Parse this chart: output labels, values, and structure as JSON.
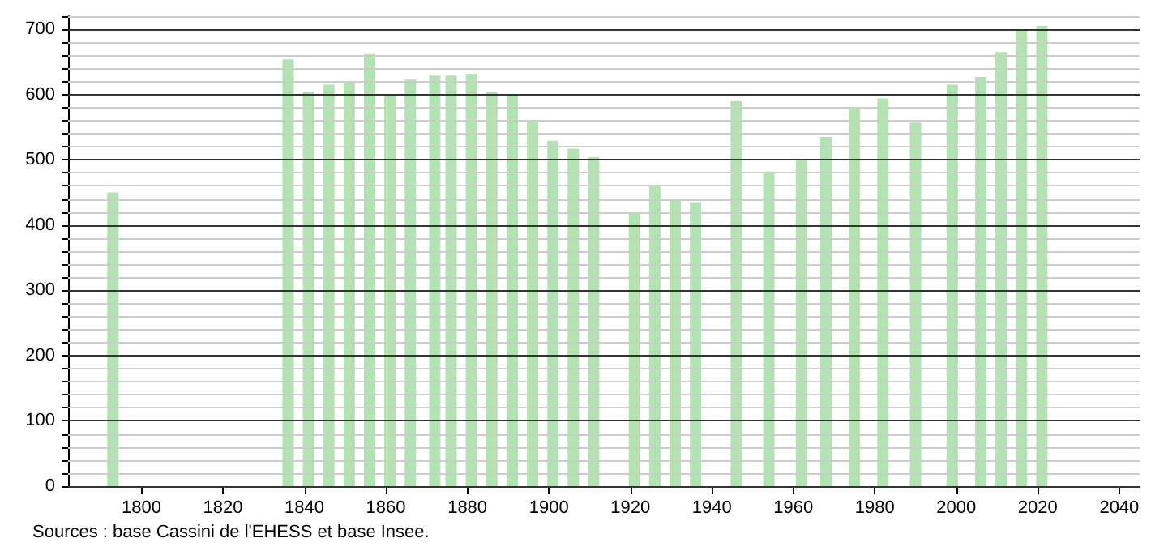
{
  "chart_data": {
    "type": "bar",
    "x": [
      1793,
      1836,
      1841,
      1846,
      1851,
      1856,
      1861,
      1866,
      1872,
      1876,
      1881,
      1886,
      1891,
      1896,
      1901,
      1906,
      1911,
      1921,
      1926,
      1931,
      1936,
      1946,
      1954,
      1962,
      1968,
      1975,
      1982,
      1990,
      1999,
      2006,
      2011,
      2016,
      2021
    ],
    "values": [
      450,
      654,
      604,
      615,
      620,
      662,
      600,
      623,
      629,
      629,
      632,
      604,
      600,
      560,
      529,
      517,
      504,
      417,
      460,
      439,
      435,
      590,
      482,
      500,
      535,
      580,
      594,
      557,
      615,
      627,
      665,
      700,
      705
    ],
    "color": "#b3e2b3",
    "xlim": [
      1782,
      2045
    ],
    "xticks": [
      1800,
      1820,
      1840,
      1860,
      1880,
      1900,
      1920,
      1940,
      1960,
      1980,
      2000,
      2020,
      2040
    ],
    "ylim": [
      0,
      720
    ],
    "yticks": [
      0,
      {
        "value": 20,
        "label": null
      },
      {
        "value": 40,
        "label": null
      },
      {
        "value": 60,
        "label": null
      },
      {
        "value": 80,
        "label": null
      },
      100,
      {
        "value": 120,
        "label": null
      },
      {
        "value": 140,
        "label": null
      },
      {
        "value": 160,
        "label": null
      },
      {
        "value": 180,
        "label": null
      },
      200,
      {
        "value": 220,
        "label": null
      },
      {
        "value": 240,
        "label": null
      },
      {
        "value": 260,
        "label": null
      },
      {
        "value": 280,
        "label": null
      },
      300,
      {
        "value": 320,
        "label": null
      },
      {
        "value": 340,
        "label": null
      },
      {
        "value": 360,
        "label": null
      },
      {
        "value": 380,
        "label": null
      },
      400,
      {
        "value": 420,
        "label": null
      },
      {
        "value": 440,
        "label": null
      },
      {
        "value": 460,
        "label": null
      },
      {
        "value": 480,
        "label": null
      },
      500,
      {
        "value": 520,
        "label": null
      },
      {
        "value": 540,
        "label": null
      },
      {
        "value": 560,
        "label": null
      },
      {
        "value": 580,
        "label": null
      },
      600,
      {
        "value": 620,
        "label": null
      },
      {
        "value": 640,
        "label": null
      },
      {
        "value": 660,
        "label": null
      },
      {
        "value": 680,
        "label": null
      },
      700,
      {
        "value": 720,
        "label": null
      }
    ],
    "grid": "y",
    "annotations": [
      "Sources : base Cassini de l'EHESS et base Insee."
    ]
  }
}
